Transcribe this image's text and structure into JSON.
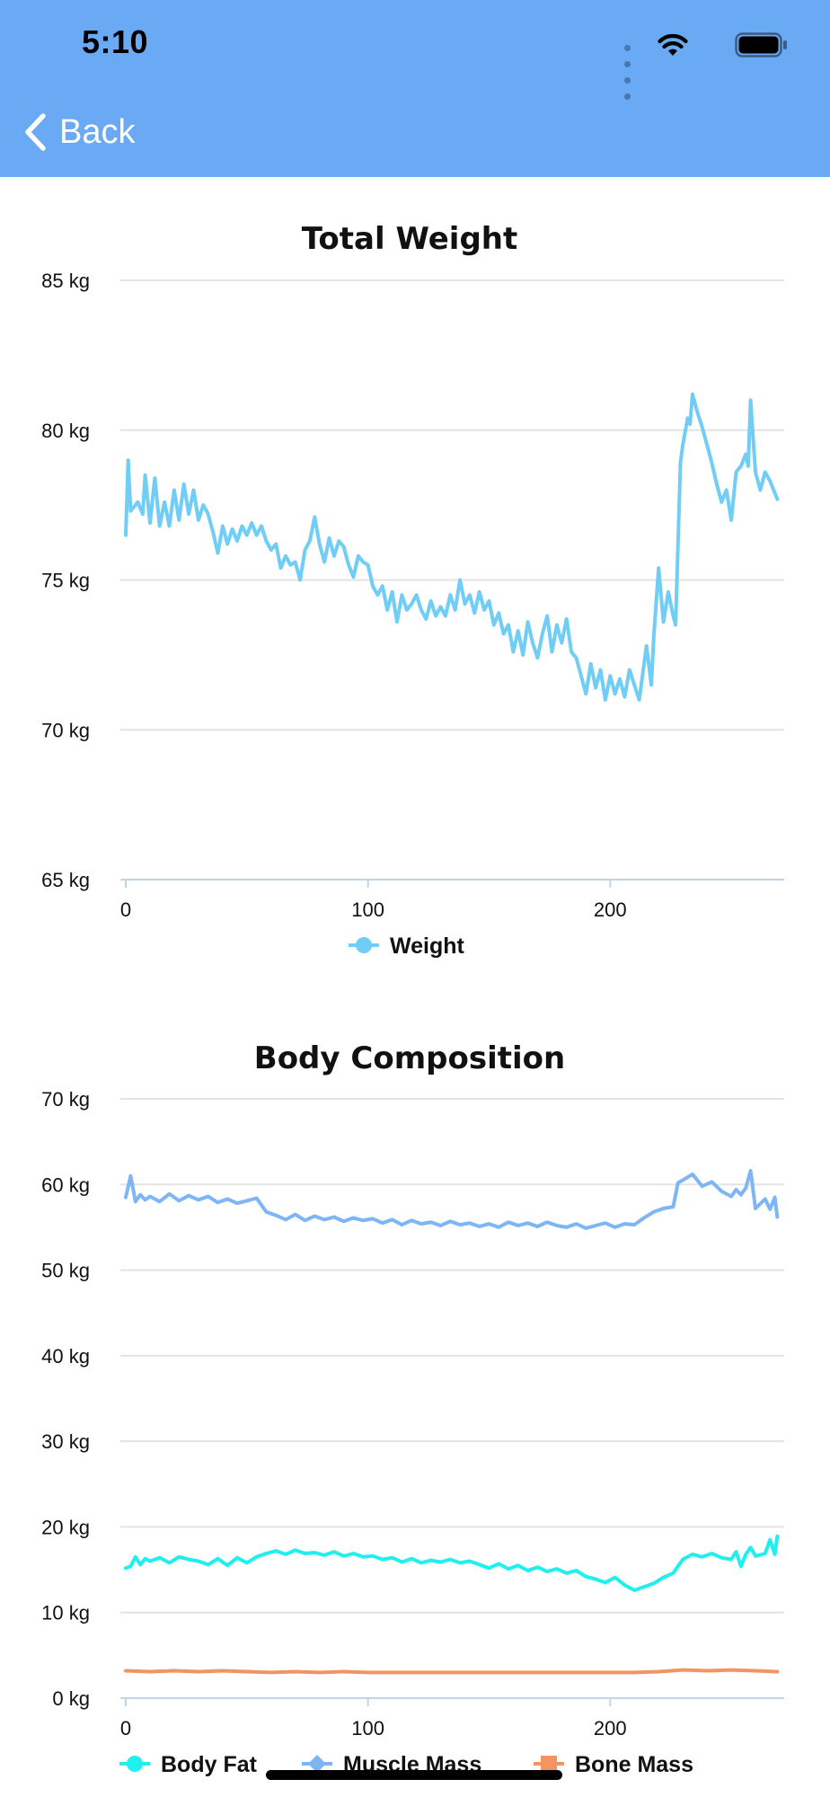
{
  "status_bar": {
    "time": "5:10"
  },
  "nav": {
    "back_label": "Back"
  },
  "icons": {
    "back": "chevron-left-icon",
    "wifi": "wifi-icon",
    "battery": "battery-icon",
    "signal": "cellular-signal-icon"
  },
  "colors": {
    "header": "#6aa9f3",
    "weight": "#6fcdf6",
    "body_fat": "#1ff0ef",
    "muscle_mass": "#7db5f6",
    "bone_mass": "#f39563",
    "grid": "#e3e3e3",
    "axis": "#c3d4e8"
  },
  "chart_data": [
    {
      "type": "line",
      "title": "Total Weight",
      "y_unit": "kg",
      "ylim": [
        65,
        85
      ],
      "y_ticks": [
        85,
        80,
        75,
        70,
        65
      ],
      "y_tick_labels": [
        "85 kg",
        "80 kg",
        "75 kg",
        "70 kg",
        "65 kg"
      ],
      "xlim": [
        0,
        270
      ],
      "x_ticks": [
        0,
        100,
        200
      ],
      "x_tick_labels": [
        "0",
        "100",
        "200"
      ],
      "grid": true,
      "legend": "bottom-center",
      "series": [
        {
          "name": "Weight",
          "x": [
            0,
            1,
            2,
            5,
            7,
            8,
            10,
            12,
            14,
            16,
            18,
            20,
            22,
            24,
            26,
            28,
            30,
            32,
            34,
            36,
            38,
            40,
            42,
            44,
            46,
            48,
            50,
            52,
            54,
            56,
            58,
            60,
            62,
            64,
            66,
            68,
            70,
            72,
            74,
            76,
            78,
            80,
            82,
            84,
            86,
            88,
            90,
            92,
            94,
            96,
            98,
            100,
            102,
            104,
            106,
            108,
            110,
            112,
            114,
            116,
            118,
            120,
            122,
            124,
            126,
            128,
            130,
            132,
            134,
            136,
            138,
            140,
            142,
            144,
            146,
            148,
            150,
            152,
            154,
            156,
            158,
            160,
            162,
            164,
            166,
            168,
            170,
            172,
            174,
            176,
            178,
            180,
            182,
            184,
            186,
            188,
            190,
            192,
            194,
            196,
            198,
            200,
            202,
            204,
            206,
            208,
            210,
            212,
            214,
            215,
            217,
            218,
            220,
            222,
            224,
            226,
            227,
            229,
            230,
            232,
            233,
            234,
            236,
            238,
            240,
            242,
            244,
            246,
            248,
            250,
            252,
            254,
            256,
            257,
            258,
            260,
            262,
            264,
            266,
            268,
            269
          ],
          "y": [
            76.5,
            79.0,
            77.3,
            77.6,
            77.2,
            78.5,
            76.9,
            78.4,
            76.8,
            77.6,
            76.8,
            78.0,
            77.0,
            78.2,
            77.2,
            78.0,
            77.0,
            77.5,
            77.2,
            76.6,
            75.9,
            76.8,
            76.2,
            76.7,
            76.3,
            76.8,
            76.5,
            76.9,
            76.5,
            76.8,
            76.3,
            76.0,
            76.2,
            75.4,
            75.8,
            75.5,
            75.6,
            75.0,
            76.0,
            76.3,
            77.1,
            76.2,
            75.6,
            76.4,
            75.8,
            76.3,
            76.1,
            75.5,
            75.1,
            75.8,
            75.6,
            75.5,
            74.8,
            74.5,
            74.8,
            74.0,
            74.6,
            73.6,
            74.5,
            74.0,
            74.2,
            74.5,
            74.0,
            73.7,
            74.3,
            73.8,
            74.1,
            73.8,
            74.5,
            74.0,
            75.0,
            74.2,
            74.5,
            73.9,
            74.6,
            74.0,
            74.3,
            73.5,
            73.9,
            73.2,
            73.5,
            72.6,
            73.3,
            72.5,
            73.6,
            72.9,
            72.4,
            73.2,
            73.8,
            72.6,
            73.5,
            72.9,
            73.7,
            72.6,
            72.4,
            71.8,
            71.2,
            72.2,
            71.4,
            72.0,
            71.0,
            71.8,
            71.2,
            71.7,
            71.1,
            72.0,
            71.5,
            71.0,
            72.2,
            72.8,
            71.5,
            73.1,
            75.4,
            73.6,
            74.6,
            73.8,
            73.5,
            78.9,
            79.5,
            80.4,
            80.2,
            81.2,
            80.6,
            80.1,
            79.5,
            78.9,
            78.2,
            77.6,
            78.0,
            77.0,
            78.6,
            78.8,
            79.2,
            78.8,
            81.0,
            78.6,
            78.0,
            78.6,
            78.3,
            77.9,
            77.7
          ]
        }
      ]
    },
    {
      "type": "line",
      "title": "Body Composition",
      "y_unit": "kg",
      "ylim": [
        0,
        70
      ],
      "y_ticks": [
        70,
        60,
        50,
        40,
        30,
        20,
        10,
        0
      ],
      "y_tick_labels": [
        "70 kg",
        "60 kg",
        "50 kg",
        "40 kg",
        "30 kg",
        "20 kg",
        "10 kg",
        "0 kg"
      ],
      "xlim": [
        0,
        270
      ],
      "x_ticks": [
        0,
        100,
        200
      ],
      "x_tick_labels": [
        "0",
        "100",
        "200"
      ],
      "grid": true,
      "legend": "bottom-center",
      "series": [
        {
          "name": "Body Fat",
          "x": [
            0,
            2,
            4,
            6,
            8,
            10,
            14,
            18,
            22,
            26,
            30,
            34,
            38,
            42,
            46,
            50,
            54,
            58,
            62,
            66,
            70,
            74,
            78,
            82,
            86,
            90,
            94,
            98,
            102,
            106,
            110,
            114,
            118,
            122,
            126,
            130,
            134,
            138,
            142,
            146,
            150,
            154,
            158,
            162,
            166,
            170,
            174,
            178,
            182,
            186,
            190,
            194,
            198,
            202,
            206,
            210,
            214,
            218,
            222,
            226,
            230,
            234,
            238,
            242,
            246,
            250,
            252,
            254,
            256,
            258,
            260,
            264,
            266,
            268,
            269
          ],
          "y": [
            15.2,
            15.4,
            16.5,
            15.6,
            16.3,
            16.0,
            16.4,
            15.8,
            16.5,
            16.2,
            16.0,
            15.6,
            16.3,
            15.5,
            16.4,
            15.8,
            16.5,
            16.9,
            17.2,
            16.8,
            17.3,
            16.9,
            17.0,
            16.7,
            17.1,
            16.6,
            16.9,
            16.5,
            16.6,
            16.2,
            16.4,
            15.9,
            16.3,
            15.8,
            16.1,
            15.9,
            16.2,
            15.8,
            16.0,
            15.6,
            15.2,
            15.7,
            15.1,
            15.5,
            14.9,
            15.3,
            14.8,
            15.1,
            14.6,
            14.9,
            14.2,
            13.9,
            13.5,
            14.1,
            13.2,
            12.6,
            13.0,
            13.4,
            14.1,
            14.6,
            16.2,
            16.8,
            16.5,
            16.9,
            16.4,
            16.2,
            17.1,
            15.4,
            16.8,
            17.6,
            16.6,
            16.9,
            18.5,
            16.8,
            18.9
          ]
        },
        {
          "name": "Muscle Mass",
          "x": [
            0,
            2,
            4,
            6,
            8,
            10,
            14,
            18,
            22,
            26,
            30,
            34,
            38,
            42,
            46,
            50,
            54,
            58,
            62,
            66,
            70,
            74,
            78,
            82,
            86,
            90,
            94,
            98,
            102,
            106,
            110,
            114,
            118,
            122,
            126,
            130,
            134,
            138,
            142,
            146,
            150,
            154,
            158,
            162,
            166,
            170,
            174,
            178,
            182,
            186,
            190,
            194,
            198,
            202,
            206,
            210,
            214,
            218,
            222,
            226,
            228,
            230,
            234,
            238,
            242,
            246,
            250,
            252,
            254,
            256,
            258,
            260,
            264,
            266,
            268,
            269
          ],
          "y": [
            58.5,
            61.0,
            58.0,
            58.8,
            58.2,
            58.6,
            58.0,
            58.9,
            58.1,
            58.7,
            58.2,
            58.6,
            57.9,
            58.3,
            57.8,
            58.1,
            58.4,
            56.8,
            56.4,
            55.9,
            56.5,
            55.8,
            56.3,
            55.9,
            56.2,
            55.7,
            56.1,
            55.8,
            56.0,
            55.5,
            55.9,
            55.3,
            55.8,
            55.4,
            55.6,
            55.2,
            55.7,
            55.3,
            55.5,
            55.1,
            55.4,
            55.0,
            55.6,
            55.2,
            55.5,
            55.1,
            55.6,
            55.2,
            55.0,
            55.4,
            54.9,
            55.2,
            55.5,
            55.0,
            55.4,
            55.3,
            56.1,
            56.8,
            57.2,
            57.4,
            60.2,
            60.5,
            61.2,
            59.8,
            60.3,
            59.2,
            58.6,
            59.4,
            58.8,
            59.6,
            61.6,
            57.2,
            58.3,
            57.1,
            58.5,
            56.2
          ]
        },
        {
          "name": "Bone Mass",
          "x": [
            0,
            10,
            20,
            30,
            40,
            50,
            60,
            70,
            80,
            90,
            100,
            110,
            120,
            130,
            140,
            150,
            160,
            170,
            180,
            190,
            200,
            210,
            220,
            230,
            240,
            250,
            260,
            269
          ],
          "y": [
            3.2,
            3.1,
            3.2,
            3.1,
            3.2,
            3.1,
            3.0,
            3.1,
            3.0,
            3.1,
            3.0,
            3.0,
            3.0,
            3.0,
            3.0,
            3.0,
            3.0,
            3.0,
            3.0,
            3.0,
            3.0,
            3.0,
            3.1,
            3.3,
            3.2,
            3.3,
            3.2,
            3.1
          ]
        }
      ]
    }
  ]
}
